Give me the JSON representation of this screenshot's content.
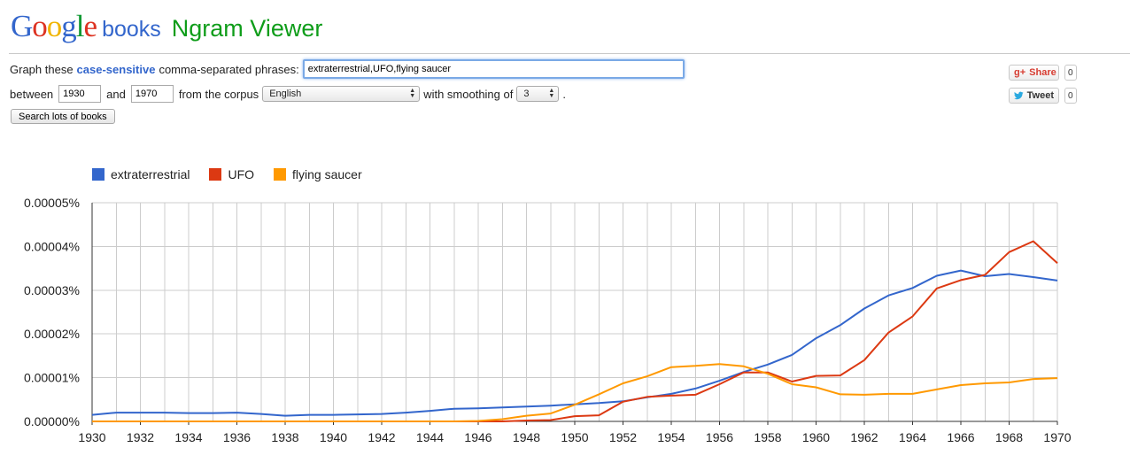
{
  "logo": {
    "google_letters": [
      {
        "ch": "G",
        "color": "#3366cc"
      },
      {
        "ch": "o",
        "color": "#dd3322"
      },
      {
        "ch": "o",
        "color": "#f0b400"
      },
      {
        "ch": "g",
        "color": "#3366cc"
      },
      {
        "ch": "l",
        "color": "#119933"
      },
      {
        "ch": "e",
        "color": "#dd3322"
      }
    ],
    "google_text": "Google",
    "books": "books",
    "product": "Ngram Viewer"
  },
  "form": {
    "graph_prefix": "Graph these",
    "case_link": "case-sensitive",
    "graph_suffix": "comma-separated phrases:",
    "phrases_value": "extraterrestrial,UFO,flying saucer",
    "between": "between",
    "start_year": "1930",
    "and": "and",
    "end_year": "1970",
    "from_corpus": "from the corpus",
    "corpus": "English",
    "with_smoothing": "with smoothing of",
    "smoothing": "3",
    "period": ".",
    "search_button": "Search lots of books"
  },
  "social": {
    "share_label": "Share",
    "share_icon": "g+",
    "share_count": "0",
    "tweet_label": "Tweet",
    "tweet_count": "0"
  },
  "colors": {
    "extraterrestrial": "#3366cc",
    "UFO": "#dc3912",
    "flying saucer": "#ff9900"
  },
  "chart_data": {
    "type": "line",
    "title": "",
    "xlabel": "",
    "ylabel": "",
    "xlim": [
      1930,
      1970
    ],
    "ylim": [
      0,
      5e-05
    ],
    "x_ticks": [
      "1930",
      "1932",
      "1934",
      "1936",
      "1938",
      "1940",
      "1942",
      "1944",
      "1946",
      "1948",
      "1950",
      "1952",
      "1954",
      "1956",
      "1958",
      "1960",
      "1962",
      "1964",
      "1966",
      "1968",
      "1970"
    ],
    "y_ticks": [
      "0.00000%",
      "0.00001%",
      "0.00002%",
      "0.00003%",
      "0.00004%",
      "0.00005%"
    ],
    "grid": true,
    "legend": "top-left",
    "x": [
      1930,
      1931,
      1932,
      1933,
      1934,
      1935,
      1936,
      1937,
      1938,
      1939,
      1940,
      1941,
      1942,
      1943,
      1944,
      1945,
      1946,
      1947,
      1948,
      1949,
      1950,
      1951,
      1952,
      1953,
      1954,
      1955,
      1956,
      1957,
      1958,
      1959,
      1960,
      1961,
      1962,
      1963,
      1964,
      1965,
      1966,
      1967,
      1968,
      1969,
      1970
    ],
    "series": [
      {
        "name": "extraterrestrial",
        "color": "#3366cc",
        "values": [
          1.5e-06,
          2e-06,
          2e-06,
          2e-06,
          1.9e-06,
          1.9e-06,
          2e-06,
          1.7e-06,
          1.3e-06,
          1.5e-06,
          1.5e-06,
          1.6e-06,
          1.7e-06,
          2e-06,
          2.4e-06,
          2.9e-06,
          3e-06,
          3.2e-06,
          3.4e-06,
          3.6e-06,
          3.9e-06,
          4.2e-06,
          4.6e-06,
          5.5e-06,
          6.3e-06,
          7.5e-06,
          9.3e-06,
          1.13e-05,
          1.3e-05,
          1.52e-05,
          1.9e-05,
          2.2e-05,
          2.58e-05,
          2.88e-05,
          3.05e-05,
          3.33e-05,
          3.45e-05,
          3.32e-05,
          3.37e-05,
          3.3e-05,
          3.22e-05
        ]
      },
      {
        "name": "UFO",
        "color": "#dc3912",
        "values": [
          0,
          0,
          0,
          0,
          0,
          0,
          0,
          0,
          0,
          0,
          0,
          0,
          0,
          0,
          0,
          0,
          0,
          0,
          2e-07,
          3e-07,
          1.2e-06,
          1.4e-06,
          4.5e-06,
          5.6e-06,
          5.9e-06,
          6.1e-06,
          8.5e-06,
          1.12e-05,
          1.12e-05,
          9.1e-06,
          1.04e-05,
          1.05e-05,
          1.4e-05,
          2.03e-05,
          2.4e-05,
          3.04e-05,
          3.23e-05,
          3.35e-05,
          3.87e-05,
          4.12e-05,
          3.62e-05
        ]
      },
      {
        "name": "flying saucer",
        "color": "#ff9900",
        "values": [
          0,
          0,
          0,
          0,
          0,
          0,
          0,
          0,
          0,
          0,
          0,
          0,
          0,
          0,
          0,
          0,
          1e-07,
          5e-07,
          1.3e-06,
          1.8e-06,
          3.8e-06,
          6.2e-06,
          8.7e-06,
          1.03e-05,
          1.24e-05,
          1.27e-05,
          1.31e-05,
          1.26e-05,
          1.09e-05,
          8.5e-06,
          7.8e-06,
          6.2e-06,
          6.1e-06,
          6.3e-06,
          6.3e-06,
          7.3e-06,
          8.3e-06,
          8.7e-06,
          8.9e-06,
          9.7e-06,
          9.9e-06
        ]
      }
    ]
  }
}
